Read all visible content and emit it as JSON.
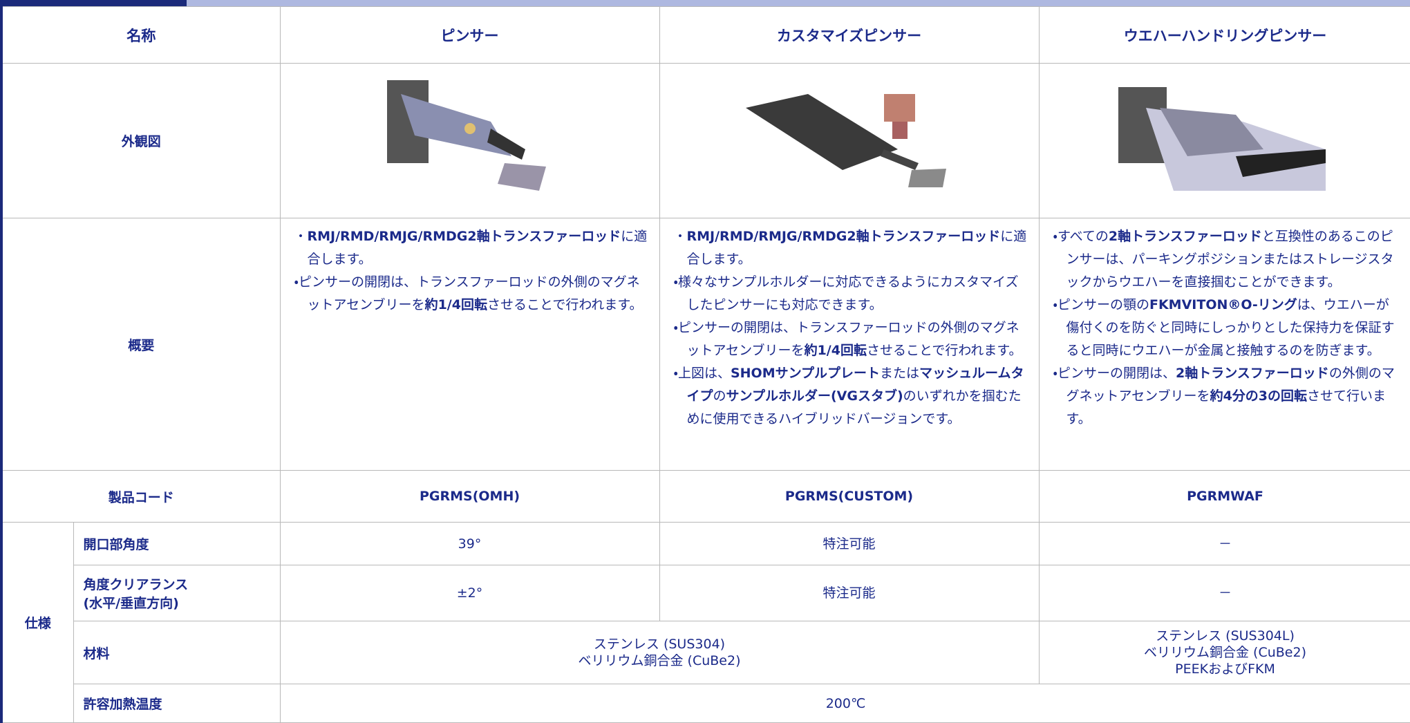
{
  "header": {
    "label": "名称",
    "columns": [
      "ピンサー",
      "カスタマイズピンサー",
      "ウエハーハンドリングピンサー"
    ]
  },
  "appearance": {
    "label": "外観図"
  },
  "overview": {
    "label": "概要",
    "cells": [
      [
        [
          {
            "text": "・"
          },
          {
            "text": "RMJ/RMD/RMJG/RMDG2軸トランスファーロッド",
            "bold": true
          },
          {
            "text": "に適合します。"
          }
        ],
        [
          {
            "text": "・ピンサーの開閉は、トランスファーロッドの外側のマグネットアセンブリーを"
          },
          {
            "text": "約1/4回転",
            "bold": true
          },
          {
            "text": "させることで行われます。"
          }
        ]
      ],
      [
        [
          {
            "text": "・"
          },
          {
            "text": "RMJ/RMD/RMJG/RMDG2軸トランスファーロッド",
            "bold": true
          },
          {
            "text": "に適合します。"
          }
        ],
        [
          {
            "text": "・様々なサンプルホルダーに対応できるようにカスタマイズしたピンサーにも対応できます。"
          }
        ],
        [
          {
            "text": "・ピンサーの開閉は、トランスファーロッドの外側のマグネットアセンブリーを"
          },
          {
            "text": "約1/4回転",
            "bold": true
          },
          {
            "text": "させることで行われます。"
          }
        ],
        [
          {
            "text": "・上図は、"
          },
          {
            "text": "SHOMサンプルプレート",
            "bold": true
          },
          {
            "text": "または"
          },
          {
            "text": "マッシュルームタイプ",
            "bold": true
          },
          {
            "text": "の"
          },
          {
            "text": "サンプルホルダー(VGスタブ)",
            "bold": true
          },
          {
            "text": "のいずれかを掴むために使用できるハイブリッドバージョンです。"
          }
        ]
      ],
      [
        [
          {
            "text": "・すべての"
          },
          {
            "text": "2軸トランスファーロッド",
            "bold": true
          },
          {
            "text": "と互換性のあるこのピンサーは、パーキングポジションまたはストレージスタックからウエハーを直接掴むことができます。"
          }
        ],
        [
          {
            "text": "・ピンサーの顎の"
          },
          {
            "text": "FKMVITON®O-リング",
            "bold": true
          },
          {
            "text": "は、ウエハーが傷付くのを防ぐと同時にしっかりとした保持力を保証すると同時にウエハーが金属と接触するのを防ぎます。"
          }
        ],
        [
          {
            "text": "・ピンサーの開閉は、"
          },
          {
            "text": "2軸トランスファーロッド",
            "bold": true
          },
          {
            "text": "の外側のマグネットアセンブリーを"
          },
          {
            "text": "約4分の3の回転",
            "bold": true
          },
          {
            "text": "させて行います。"
          }
        ]
      ]
    ]
  },
  "product_code": {
    "label": "製品コード",
    "values": [
      "PGRMS(OMH)",
      "PGRMS(CUSTOM)",
      "PGRMWAF"
    ]
  },
  "spec": {
    "label": "仕様",
    "rows": [
      {
        "label": "開口部角度",
        "cells": [
          "39°",
          "特注可能",
          "－"
        ]
      },
      {
        "label": "角度クリアランス\n(水平/垂直方向)",
        "cells": [
          "±2°",
          "特注可能",
          "－"
        ]
      },
      {
        "label": "材料",
        "cells": [
          "ステンレス (SUS304)\nベリリウム銅合金 (CuBe2)",
          "ステンレス (SUS304L)\nベリリウム銅合金 (CuBe2)\nPEEKおよびFKM"
        ]
      },
      {
        "label": "許容加熱温度",
        "cells": [
          "200℃"
        ]
      }
    ]
  }
}
